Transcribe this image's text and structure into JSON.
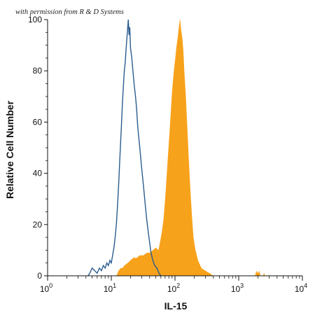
{
  "credit": "with permission from R & D Systems",
  "colors": {
    "control_outline": "#2a5d8f",
    "stained_fill": "#f7a21b",
    "axis": "#111111"
  },
  "chart_data": {
    "type": "area",
    "xlabel": "IL-15",
    "ylabel": "Relative Cell Number",
    "x_scale": "log",
    "xlim": [
      1,
      10000
    ],
    "ylim": [
      0,
      100
    ],
    "x_ticks": [
      {
        "base": "10",
        "exp": "0",
        "value": 1
      },
      {
        "base": "10",
        "exp": "1",
        "value": 10
      },
      {
        "base": "10",
        "exp": "2",
        "value": 100
      },
      {
        "base": "10",
        "exp": "3",
        "value": 1000
      },
      {
        "base": "10",
        "exp": "4",
        "value": 10000
      }
    ],
    "y_ticks": [
      "0",
      "20",
      "40",
      "60",
      "80",
      "100"
    ],
    "series": [
      {
        "style": "outline",
        "color": "#2a5d8f",
        "points": [
          [
            4.3,
            0
          ],
          [
            4.6,
            1
          ],
          [
            5.0,
            3
          ],
          [
            5.5,
            2
          ],
          [
            6.0,
            1
          ],
          [
            6.5,
            3
          ],
          [
            7.0,
            2
          ],
          [
            7.5,
            4
          ],
          [
            8.0,
            3
          ],
          [
            8.5,
            5
          ],
          [
            9.0,
            4
          ],
          [
            9.5,
            6
          ],
          [
            10.0,
            5
          ],
          [
            10.5,
            8
          ],
          [
            11.0,
            11
          ],
          [
            11.5,
            15
          ],
          [
            12.0,
            20
          ],
          [
            12.5,
            27
          ],
          [
            13.0,
            35
          ],
          [
            13.5,
            44
          ],
          [
            14.0,
            52
          ],
          [
            14.5,
            60
          ],
          [
            15.0,
            68
          ],
          [
            15.5,
            74
          ],
          [
            16.0,
            80
          ],
          [
            16.5,
            83
          ],
          [
            17.0,
            88
          ],
          [
            17.5,
            92
          ],
          [
            18.0,
            96
          ],
          [
            18.5,
            100
          ],
          [
            19.0,
            94
          ],
          [
            19.5,
            97
          ],
          [
            20.0,
            89
          ],
          [
            21.0,
            85
          ],
          [
            22.0,
            79
          ],
          [
            23.0,
            74
          ],
          [
            24.0,
            70
          ],
          [
            25.0,
            65
          ],
          [
            26.0,
            58
          ],
          [
            28.0,
            50
          ],
          [
            30.0,
            42
          ],
          [
            32.0,
            35
          ],
          [
            34.0,
            28
          ],
          [
            36.0,
            22
          ],
          [
            38.0,
            17
          ],
          [
            40.0,
            13
          ],
          [
            42.0,
            9
          ],
          [
            45.0,
            6
          ],
          [
            48.0,
            4
          ],
          [
            52.0,
            3
          ],
          [
            56.0,
            1
          ],
          [
            60.0,
            0
          ]
        ]
      },
      {
        "style": "filled",
        "color": "#f7a21b",
        "points": [
          [
            12.0,
            0
          ],
          [
            13.0,
            2
          ],
          [
            14.0,
            3
          ],
          [
            15.0,
            3
          ],
          [
            16.0,
            4
          ],
          [
            18.0,
            5
          ],
          [
            20.0,
            6
          ],
          [
            22.0,
            7
          ],
          [
            25.0,
            7
          ],
          [
            28.0,
            8
          ],
          [
            32.0,
            8
          ],
          [
            36.0,
            9
          ],
          [
            40.0,
            9
          ],
          [
            45.0,
            10
          ],
          [
            50.0,
            11
          ],
          [
            55.0,
            10
          ],
          [
            58.0,
            13
          ],
          [
            62.0,
            17
          ],
          [
            66.0,
            22
          ],
          [
            70.0,
            30
          ],
          [
            74.0,
            39
          ],
          [
            78.0,
            48
          ],
          [
            82.0,
            56
          ],
          [
            86.0,
            64
          ],
          [
            90.0,
            72
          ],
          [
            95.0,
            79
          ],
          [
            100.0,
            84
          ],
          [
            105.0,
            89
          ],
          [
            110.0,
            93
          ],
          [
            115.0,
            97
          ],
          [
            120.0,
            101
          ],
          [
            125.0,
            96
          ],
          [
            130.0,
            93
          ],
          [
            135.0,
            88
          ],
          [
            140.0,
            80
          ],
          [
            148.0,
            70
          ],
          [
            156.0,
            58
          ],
          [
            165.0,
            45
          ],
          [
            175.0,
            33
          ],
          [
            185.0,
            23
          ],
          [
            195.0,
            15
          ],
          [
            210.0,
            10
          ],
          [
            230.0,
            6
          ],
          [
            260.0,
            3
          ],
          [
            300.0,
            2
          ],
          [
            350.0,
            1
          ],
          [
            400.0,
            0
          ],
          [
            1800.0,
            0
          ],
          [
            1900.0,
            2
          ],
          [
            2000.0,
            1
          ],
          [
            2100.0,
            2
          ],
          [
            2200.0,
            0
          ],
          [
            2400.0,
            0
          ],
          [
            2500.0,
            1
          ],
          [
            2600.0,
            0
          ]
        ]
      }
    ]
  }
}
